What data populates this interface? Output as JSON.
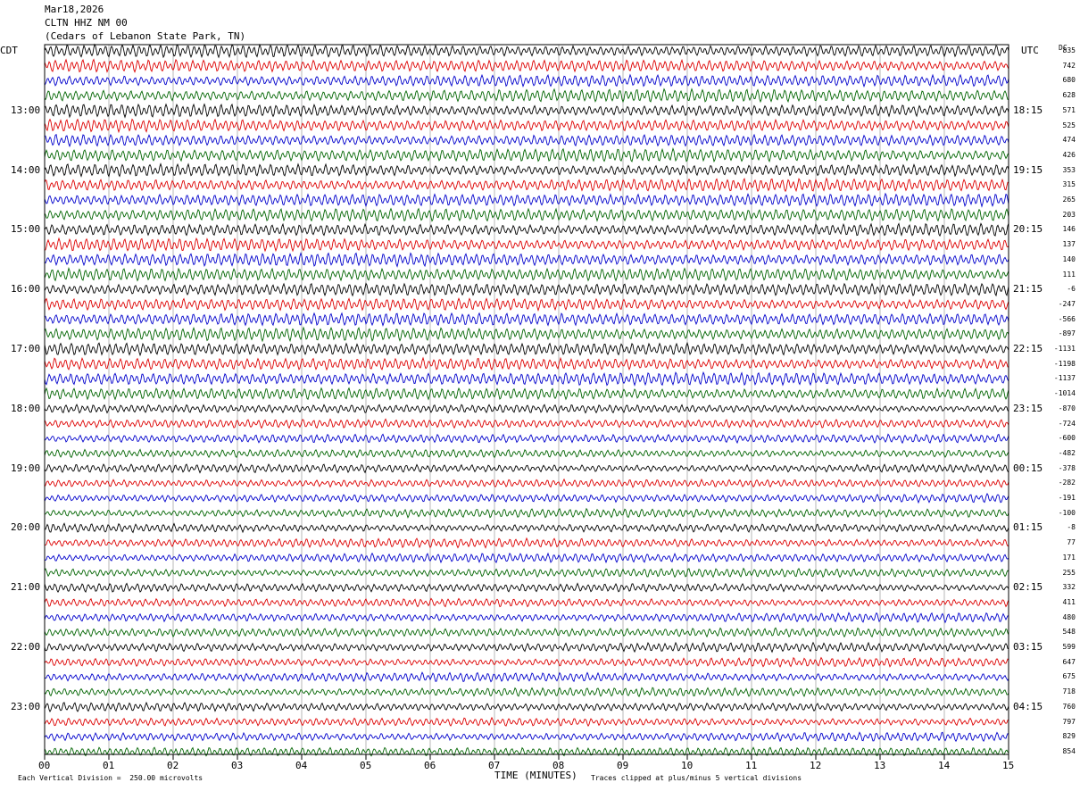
{
  "header": {
    "date": "Mar18,2026",
    "station": "CLTN HHZ NM 00",
    "location": "(Cedars of Lebanon State Park, TN)"
  },
  "left_timezone": "CDT",
  "right_timezone": "UTC",
  "dc_label": "DC",
  "footer": {
    "vertical_division": "Each Vertical Division =  250.00 microvolts",
    "clip_note": "Traces clipped at plus/minus 5 vertical divisions",
    "x_axis_title": "TIME (MINUTES)"
  },
  "colors": {
    "trace_cycle": [
      "#000000",
      "#dd0000",
      "#0000cc",
      "#006400"
    ],
    "grid": "#888888"
  },
  "chart_data": {
    "type": "line",
    "xlabel": "TIME (MINUTES)",
    "xlim": [
      0,
      15
    ],
    "x_ticks": [
      "00",
      "01",
      "02",
      "03",
      "04",
      "05",
      "06",
      "07",
      "08",
      "09",
      "10",
      "11",
      "12",
      "13",
      "14",
      "15"
    ],
    "rows_per_hour": 4,
    "row_count": 48,
    "left_hour_labels": [
      "13:00",
      "14:00",
      "15:00",
      "16:00",
      "17:00",
      "18:00",
      "19:00",
      "20:00",
      "21:00",
      "22:00",
      "23:00"
    ],
    "right_hour_labels": [
      "18:15",
      "19:15",
      "20:15",
      "21:15",
      "22:15",
      "23:15",
      "00:15",
      "01:15",
      "02:15",
      "03:15",
      "04:15"
    ],
    "dc_offsets": [
      "835",
      "742",
      "680",
      "628",
      "571",
      "525",
      "474",
      "426",
      "353",
      "315",
      "265",
      "203",
      "146",
      "137",
      "140",
      "111",
      "-6",
      "-247",
      "-566",
      "-897",
      "-1131",
      "-1198",
      "-1137",
      "-1014",
      "-870",
      "-724",
      "-600",
      "-482",
      "-378",
      "-282",
      "-191",
      "-100",
      "-8",
      "77",
      "171",
      "255",
      "332",
      "411",
      "480",
      "548",
      "599",
      "647",
      "675",
      "718",
      "760",
      "797",
      "829",
      "854"
    ]
  }
}
